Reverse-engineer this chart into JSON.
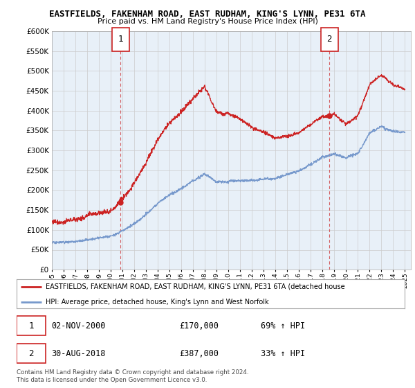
{
  "title": "EASTFIELDS, FAKENHAM ROAD, EAST RUDHAM, KING'S LYNN, PE31 6TA",
  "subtitle": "Price paid vs. HM Land Registry's House Price Index (HPI)",
  "ytick_values": [
    0,
    50000,
    100000,
    150000,
    200000,
    250000,
    300000,
    350000,
    400000,
    450000,
    500000,
    550000,
    600000
  ],
  "ylim": [
    0,
    600000
  ],
  "red_color": "#cc2222",
  "blue_color": "#7799cc",
  "chart_bg": "#e8f0f8",
  "background_color": "#ffffff",
  "grid_color": "#cccccc",
  "sale1_year": 2000.84,
  "sale1_val": 170000,
  "sale2_year": 2018.58,
  "sale2_val": 387000,
  "legend_line1": "EASTFIELDS, FAKENHAM ROAD, EAST RUDHAM, KING'S LYNN, PE31 6TA (detached house",
  "legend_line2": "HPI: Average price, detached house, King's Lynn and West Norfolk",
  "table_row1": [
    "1",
    "02-NOV-2000",
    "£170,000",
    "69% ↑ HPI"
  ],
  "table_row2": [
    "2",
    "30-AUG-2018",
    "£387,000",
    "33% ↑ HPI"
  ],
  "footer": "Contains HM Land Registry data © Crown copyright and database right 2024.\nThis data is licensed under the Open Government Licence v3.0."
}
